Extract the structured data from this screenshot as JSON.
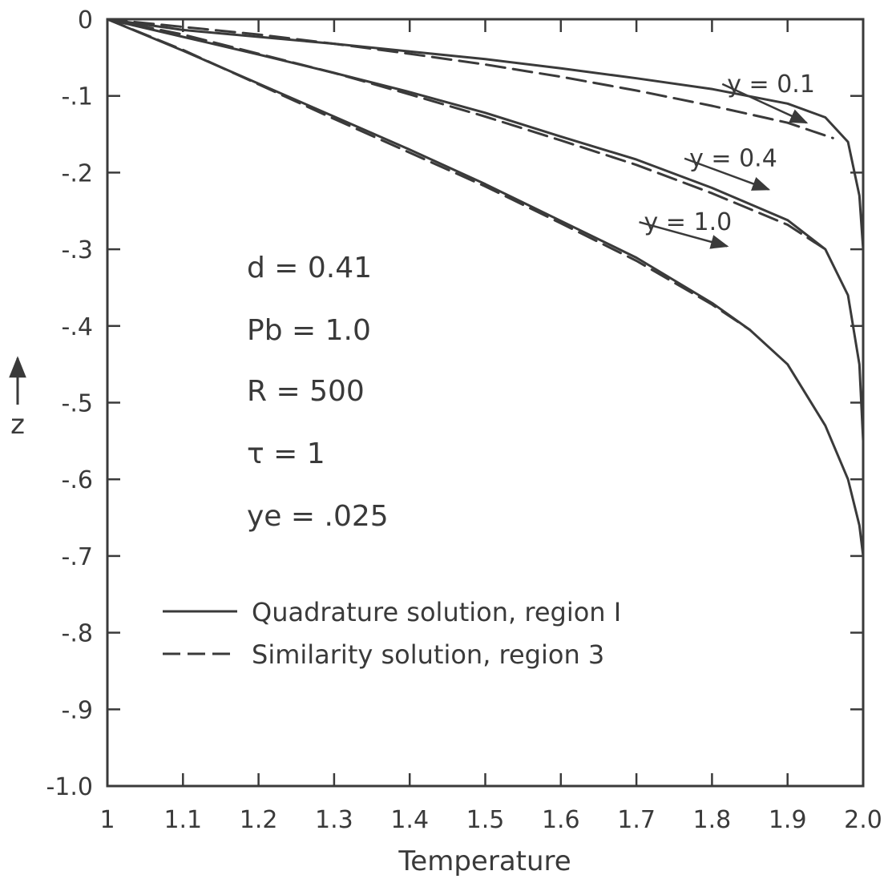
{
  "chart_data": {
    "type": "line",
    "xlabel": "Temperature",
    "ylabel": "z",
    "xlim": [
      1.0,
      2.0
    ],
    "ylim": [
      -1.0,
      0.0
    ],
    "x_ticks": [
      1.0,
      1.1,
      1.2,
      1.3,
      1.4,
      1.5,
      1.6,
      1.7,
      1.8,
      1.9,
      2.0
    ],
    "x_tick_labels": [
      "1",
      "1.1",
      "1.2",
      "1.3",
      "1.4",
      "1.5",
      "1.6",
      "1.7",
      "1.8",
      "1.9",
      "2.0"
    ],
    "y_ticks": [
      0,
      -0.1,
      -0.2,
      -0.3,
      -0.4,
      -0.5,
      -0.6,
      -0.7,
      -0.8,
      -0.9,
      -1.0
    ],
    "y_tick_labels": [
      "0",
      "-.1",
      "-.2",
      "-.3",
      "-.4",
      "-.5",
      "-.6",
      "-.7",
      "-.8",
      "-.9",
      "-1.0"
    ],
    "grid": false,
    "legend": {
      "placement": "lower-left",
      "entries": [
        {
          "label": "Quadrature solution, region I",
          "style": "solid"
        },
        {
          "label": "Similarity solution, region 3",
          "style": "dashed"
        }
      ]
    },
    "parameters": [
      "d = 0.41",
      "Pb = 1.0",
      "R = 500",
      "τ = 1",
      "ye = .025"
    ],
    "curve_labels": [
      {
        "text": "y = 0.1",
        "x": 1.82,
        "y": -0.095
      },
      {
        "text": "y = 0.4",
        "x": 1.77,
        "y": -0.192
      },
      {
        "text": "y = 1.0",
        "x": 1.71,
        "y": -0.275
      }
    ],
    "series": [
      {
        "curve": "y = 0.1",
        "style": "solid",
        "x": [
          1.0,
          1.1,
          1.2,
          1.3,
          1.4,
          1.5,
          1.6,
          1.7,
          1.8,
          1.9,
          1.95,
          1.98,
          1.995,
          2.0
        ],
        "y": [
          0.0,
          -0.014,
          -0.023,
          -0.032,
          -0.042,
          -0.052,
          -0.064,
          -0.077,
          -0.091,
          -0.11,
          -0.128,
          -0.16,
          -0.23,
          -0.3
        ]
      },
      {
        "curve": "y = 0.1",
        "style": "dashed",
        "x": [
          1.0,
          1.1,
          1.2,
          1.3,
          1.4,
          1.5,
          1.6,
          1.7,
          1.8,
          1.9,
          1.96
        ],
        "y": [
          0.0,
          -0.01,
          -0.02,
          -0.032,
          -0.045,
          -0.059,
          -0.075,
          -0.093,
          -0.113,
          -0.135,
          -0.155
        ]
      },
      {
        "curve": "y = 0.4",
        "style": "solid",
        "x": [
          1.0,
          1.1,
          1.2,
          1.3,
          1.4,
          1.5,
          1.6,
          1.7,
          1.8,
          1.9,
          1.95,
          1.98,
          1.995,
          2.0
        ],
        "y": [
          0.0,
          -0.023,
          -0.046,
          -0.07,
          -0.095,
          -0.122,
          -0.153,
          -0.183,
          -0.22,
          -0.262,
          -0.3,
          -0.36,
          -0.45,
          -0.55
        ]
      },
      {
        "curve": "y = 0.4",
        "style": "dashed",
        "x": [
          1.0,
          1.1,
          1.2,
          1.3,
          1.4,
          1.5,
          1.6,
          1.7,
          1.8,
          1.9,
          1.95
        ],
        "y": [
          0.0,
          -0.02,
          -0.045,
          -0.07,
          -0.098,
          -0.127,
          -0.158,
          -0.19,
          -0.227,
          -0.268,
          -0.3
        ]
      },
      {
        "curve": "y = 1.0",
        "style": "solid",
        "x": [
          1.0,
          1.1,
          1.2,
          1.3,
          1.4,
          1.5,
          1.6,
          1.7,
          1.8,
          1.85,
          1.9,
          1.95,
          1.98,
          1.995,
          2.0
        ],
        "y": [
          0.0,
          -0.041,
          -0.084,
          -0.127,
          -0.17,
          -0.215,
          -0.263,
          -0.311,
          -0.37,
          -0.405,
          -0.45,
          -0.53,
          -0.6,
          -0.66,
          -0.7
        ]
      },
      {
        "curve": "y = 1.0",
        "style": "dashed",
        "x": [
          1.0,
          1.1,
          1.2,
          1.3,
          1.4,
          1.5,
          1.6,
          1.7,
          1.8,
          1.85
        ],
        "y": [
          0.0,
          -0.04,
          -0.085,
          -0.13,
          -0.174,
          -0.218,
          -0.266,
          -0.315,
          -0.372,
          -0.405
        ]
      }
    ]
  }
}
